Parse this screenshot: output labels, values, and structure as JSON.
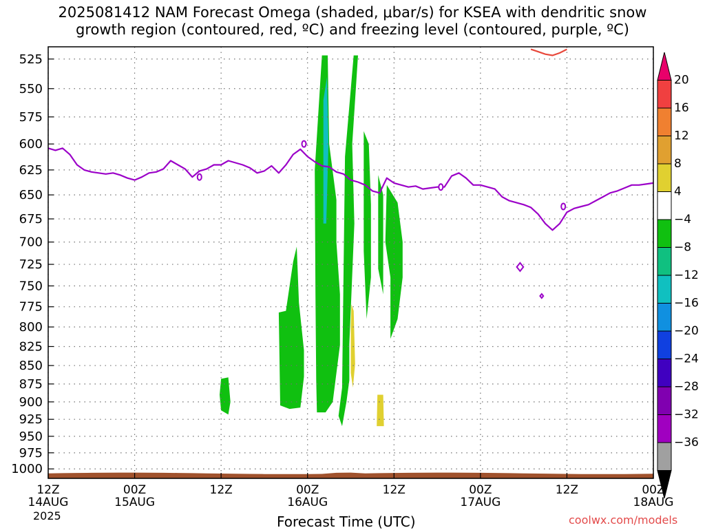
{
  "title": {
    "line1": "2025081412 NAM Forecast Omega (shaded, μbar/s) for KSEA with dendritic snow",
    "line2": "growth region (contoured, red, ºC) and freezing level (contoured, purple, ºC)"
  },
  "x_axis_title": "Forecast Time (UTC)",
  "credit": "coolwx.com/models",
  "colors": {
    "freezing_level": "#9b00c8",
    "dgz": "#e8473a",
    "terrain": "#a0522d",
    "grid": "#707070"
  },
  "chart_data": {
    "type": "time-height cross section",
    "xlabel": "Forecast Time (UTC)",
    "ylabel": "",
    "y_scale": "log",
    "ylim_hPa": [
      1015,
      515
    ],
    "xlim_hours": [
      0,
      84
    ],
    "grid": true,
    "y_ticks": [
      525,
      550,
      575,
      600,
      625,
      650,
      675,
      700,
      725,
      750,
      775,
      800,
      825,
      850,
      875,
      900,
      925,
      950,
      975,
      1000
    ],
    "x_ticks": [
      {
        "hour": 0,
        "time": "12Z",
        "date": "14AUG",
        "year": "2025"
      },
      {
        "hour": 12,
        "time": "00Z",
        "date": "15AUG",
        "year": ""
      },
      {
        "hour": 24,
        "time": "12Z",
        "date": "",
        "year": ""
      },
      {
        "hour": 36,
        "time": "00Z",
        "date": "16AUG",
        "year": ""
      },
      {
        "hour": 48,
        "time": "12Z",
        "date": "",
        "year": ""
      },
      {
        "hour": 60,
        "time": "00Z",
        "date": "17AUG",
        "year": ""
      },
      {
        "hour": 72,
        "time": "12Z",
        "date": "",
        "year": ""
      },
      {
        "hour": 84,
        "time": "00Z",
        "date": "18AUG",
        "year": ""
      }
    ],
    "colorbar": {
      "labels": [
        "20",
        "16",
        "12",
        "8",
        "4",
        "−4",
        "−8",
        "−12",
        "−16",
        "−20",
        "−24",
        "−28",
        "−32",
        "−36"
      ],
      "colors_top_to_bottom": [
        "#e8006a",
        "#f04040",
        "#f08030",
        "#e0a030",
        "#e0d030",
        "#ffffff",
        "#10c010",
        "#10c080",
        "#10c0c0",
        "#1090e0",
        "#1040e0",
        "#4000c0",
        "#8000b0",
        "#a000c0",
        "#a0a0a0",
        "#000000"
      ]
    },
    "freezing_level_0C": {
      "name": "0ºC",
      "points": [
        [
          0,
          604
        ],
        [
          1,
          606
        ],
        [
          2,
          604
        ],
        [
          3,
          610
        ],
        [
          4,
          620
        ],
        [
          5,
          625
        ],
        [
          6,
          627
        ],
        [
          7,
          628
        ],
        [
          8,
          629
        ],
        [
          9,
          628
        ],
        [
          10,
          630
        ],
        [
          11,
          633
        ],
        [
          12,
          635
        ],
        [
          13,
          632
        ],
        [
          14,
          628
        ],
        [
          15,
          627
        ],
        [
          16,
          624
        ],
        [
          17,
          616
        ],
        [
          18,
          620
        ],
        [
          19,
          624
        ],
        [
          20,
          632
        ],
        [
          21,
          626
        ],
        [
          22,
          624
        ],
        [
          23,
          620
        ],
        [
          24,
          620
        ],
        [
          25,
          616
        ],
        [
          26,
          618
        ],
        [
          27,
          620
        ],
        [
          28,
          623
        ],
        [
          29,
          628
        ],
        [
          30,
          626
        ],
        [
          31,
          621
        ],
        [
          32,
          628
        ],
        [
          33,
          620
        ],
        [
          34,
          610
        ],
        [
          35,
          605
        ],
        [
          36,
          612
        ],
        [
          37,
          617
        ],
        [
          38,
          621
        ],
        [
          39,
          622
        ],
        [
          40,
          627
        ],
        [
          41,
          629
        ],
        [
          42,
          635
        ],
        [
          43,
          637
        ],
        [
          44,
          640
        ],
        [
          45,
          646
        ],
        [
          46,
          648
        ],
        [
          47,
          633
        ],
        [
          48,
          638
        ],
        [
          49,
          640
        ],
        [
          50,
          642
        ],
        [
          51,
          641
        ],
        [
          52,
          644
        ],
        [
          53,
          643
        ],
        [
          54,
          642
        ],
        [
          55,
          642
        ],
        [
          56,
          631
        ],
        [
          57,
          628
        ],
        [
          58,
          633
        ],
        [
          59,
          640
        ],
        [
          60,
          640
        ],
        [
          61,
          642
        ],
        [
          62,
          644
        ],
        [
          63,
          652
        ],
        [
          64,
          656
        ],
        [
          65,
          658
        ],
        [
          66,
          660
        ],
        [
          67,
          663
        ],
        [
          68,
          670
        ],
        [
          69,
          680
        ],
        [
          70,
          687
        ],
        [
          71,
          680
        ],
        [
          72,
          668
        ],
        [
          73,
          664
        ],
        [
          74,
          662
        ],
        [
          75,
          660
        ],
        [
          76,
          656
        ],
        [
          77,
          652
        ],
        [
          78,
          648
        ],
        [
          79,
          646
        ],
        [
          80,
          643
        ],
        [
          81,
          640
        ],
        [
          82,
          640
        ],
        [
          83,
          639
        ],
        [
          84,
          638
        ]
      ],
      "labels_at": [
        [
          21,
          632
        ],
        [
          35.5,
          600
        ],
        [
          54.5,
          642
        ],
        [
          71.5,
          662
        ]
      ],
      "closed_contours": [
        [
          65.5,
          728
        ],
        [
          68.5,
          762
        ]
      ]
    },
    "dgz_contour": {
      "name": "dendritic snow growth region",
      "points": [
        [
          67,
          517
        ],
        [
          68,
          519
        ],
        [
          69,
          521
        ],
        [
          70,
          522
        ],
        [
          71,
          520
        ],
        [
          72,
          517
        ]
      ]
    },
    "omega_regions": [
      {
        "value": -6,
        "polygon": [
          [
            24,
            868
          ],
          [
            25,
            866
          ],
          [
            25.3,
            900
          ],
          [
            25,
            918
          ],
          [
            24,
            912
          ],
          [
            23.8,
            890
          ]
        ]
      },
      {
        "value": -6,
        "polygon": [
          [
            32,
            782
          ],
          [
            33,
            780
          ],
          [
            34,
            722
          ],
          [
            34.5,
            705
          ],
          [
            34.8,
            770
          ],
          [
            35.5,
            830
          ],
          [
            35.5,
            865
          ],
          [
            35,
            908
          ],
          [
            33.5,
            910
          ],
          [
            32.2,
            905
          ]
        ]
      },
      {
        "value": -6,
        "polygon": [
          [
            37,
            625
          ],
          [
            38,
            522
          ],
          [
            38.8,
            522
          ],
          [
            39,
            600
          ],
          [
            40,
            655
          ],
          [
            40,
            700
          ],
          [
            40.5,
            760
          ],
          [
            40.5,
            823
          ],
          [
            39.5,
            900
          ],
          [
            38.5,
            915
          ],
          [
            37.3,
            915
          ],
          [
            37.2,
            870
          ],
          [
            37.1,
            760
          ]
        ]
      },
      {
        "value": -6,
        "polygon": [
          [
            41.2,
            612
          ],
          [
            42.4,
            522
          ],
          [
            43,
            522
          ],
          [
            42.2,
            600
          ],
          [
            42.5,
            680
          ],
          [
            41.8,
            822
          ],
          [
            41.8,
            870
          ],
          [
            41.4,
            900
          ],
          [
            40.8,
            935
          ],
          [
            40.3,
            920
          ],
          [
            40.8,
            880
          ]
        ]
      },
      {
        "value": -12,
        "polygon": [
          [
            38.2,
            560
          ],
          [
            38.7,
            540
          ],
          [
            38.9,
            600
          ],
          [
            38.6,
            680
          ],
          [
            38.2,
            680
          ]
        ]
      },
      {
        "value": -6,
        "polygon": [
          [
            43.8,
            588
          ],
          [
            44.5,
            600
          ],
          [
            44.8,
            660
          ],
          [
            44.8,
            740
          ],
          [
            44.2,
            790
          ],
          [
            43.8,
            710
          ]
        ]
      },
      {
        "value": -6,
        "polygon": [
          [
            45.8,
            630
          ],
          [
            46.5,
            650
          ],
          [
            46.5,
            700
          ],
          [
            46.5,
            760
          ],
          [
            45.8,
            730
          ]
        ]
      },
      {
        "value": -6,
        "polygon": [
          [
            47,
            640
          ],
          [
            48.5,
            658
          ],
          [
            49.2,
            700
          ],
          [
            49.2,
            740
          ],
          [
            48.5,
            790
          ],
          [
            47.5,
            815
          ],
          [
            47.5,
            740
          ],
          [
            46.8,
            700
          ]
        ]
      },
      {
        "value": 6,
        "polygon": [
          [
            42.1,
            772
          ],
          [
            42.4,
            780
          ],
          [
            42.6,
            848
          ],
          [
            42.3,
            880
          ],
          [
            42.0,
            860
          ],
          [
            42.0,
            800
          ]
        ]
      },
      {
        "value": 6,
        "polygon": [
          [
            45.7,
            890
          ],
          [
            46.5,
            890
          ],
          [
            46.6,
            935
          ],
          [
            45.6,
            935
          ]
        ]
      }
    ]
  }
}
